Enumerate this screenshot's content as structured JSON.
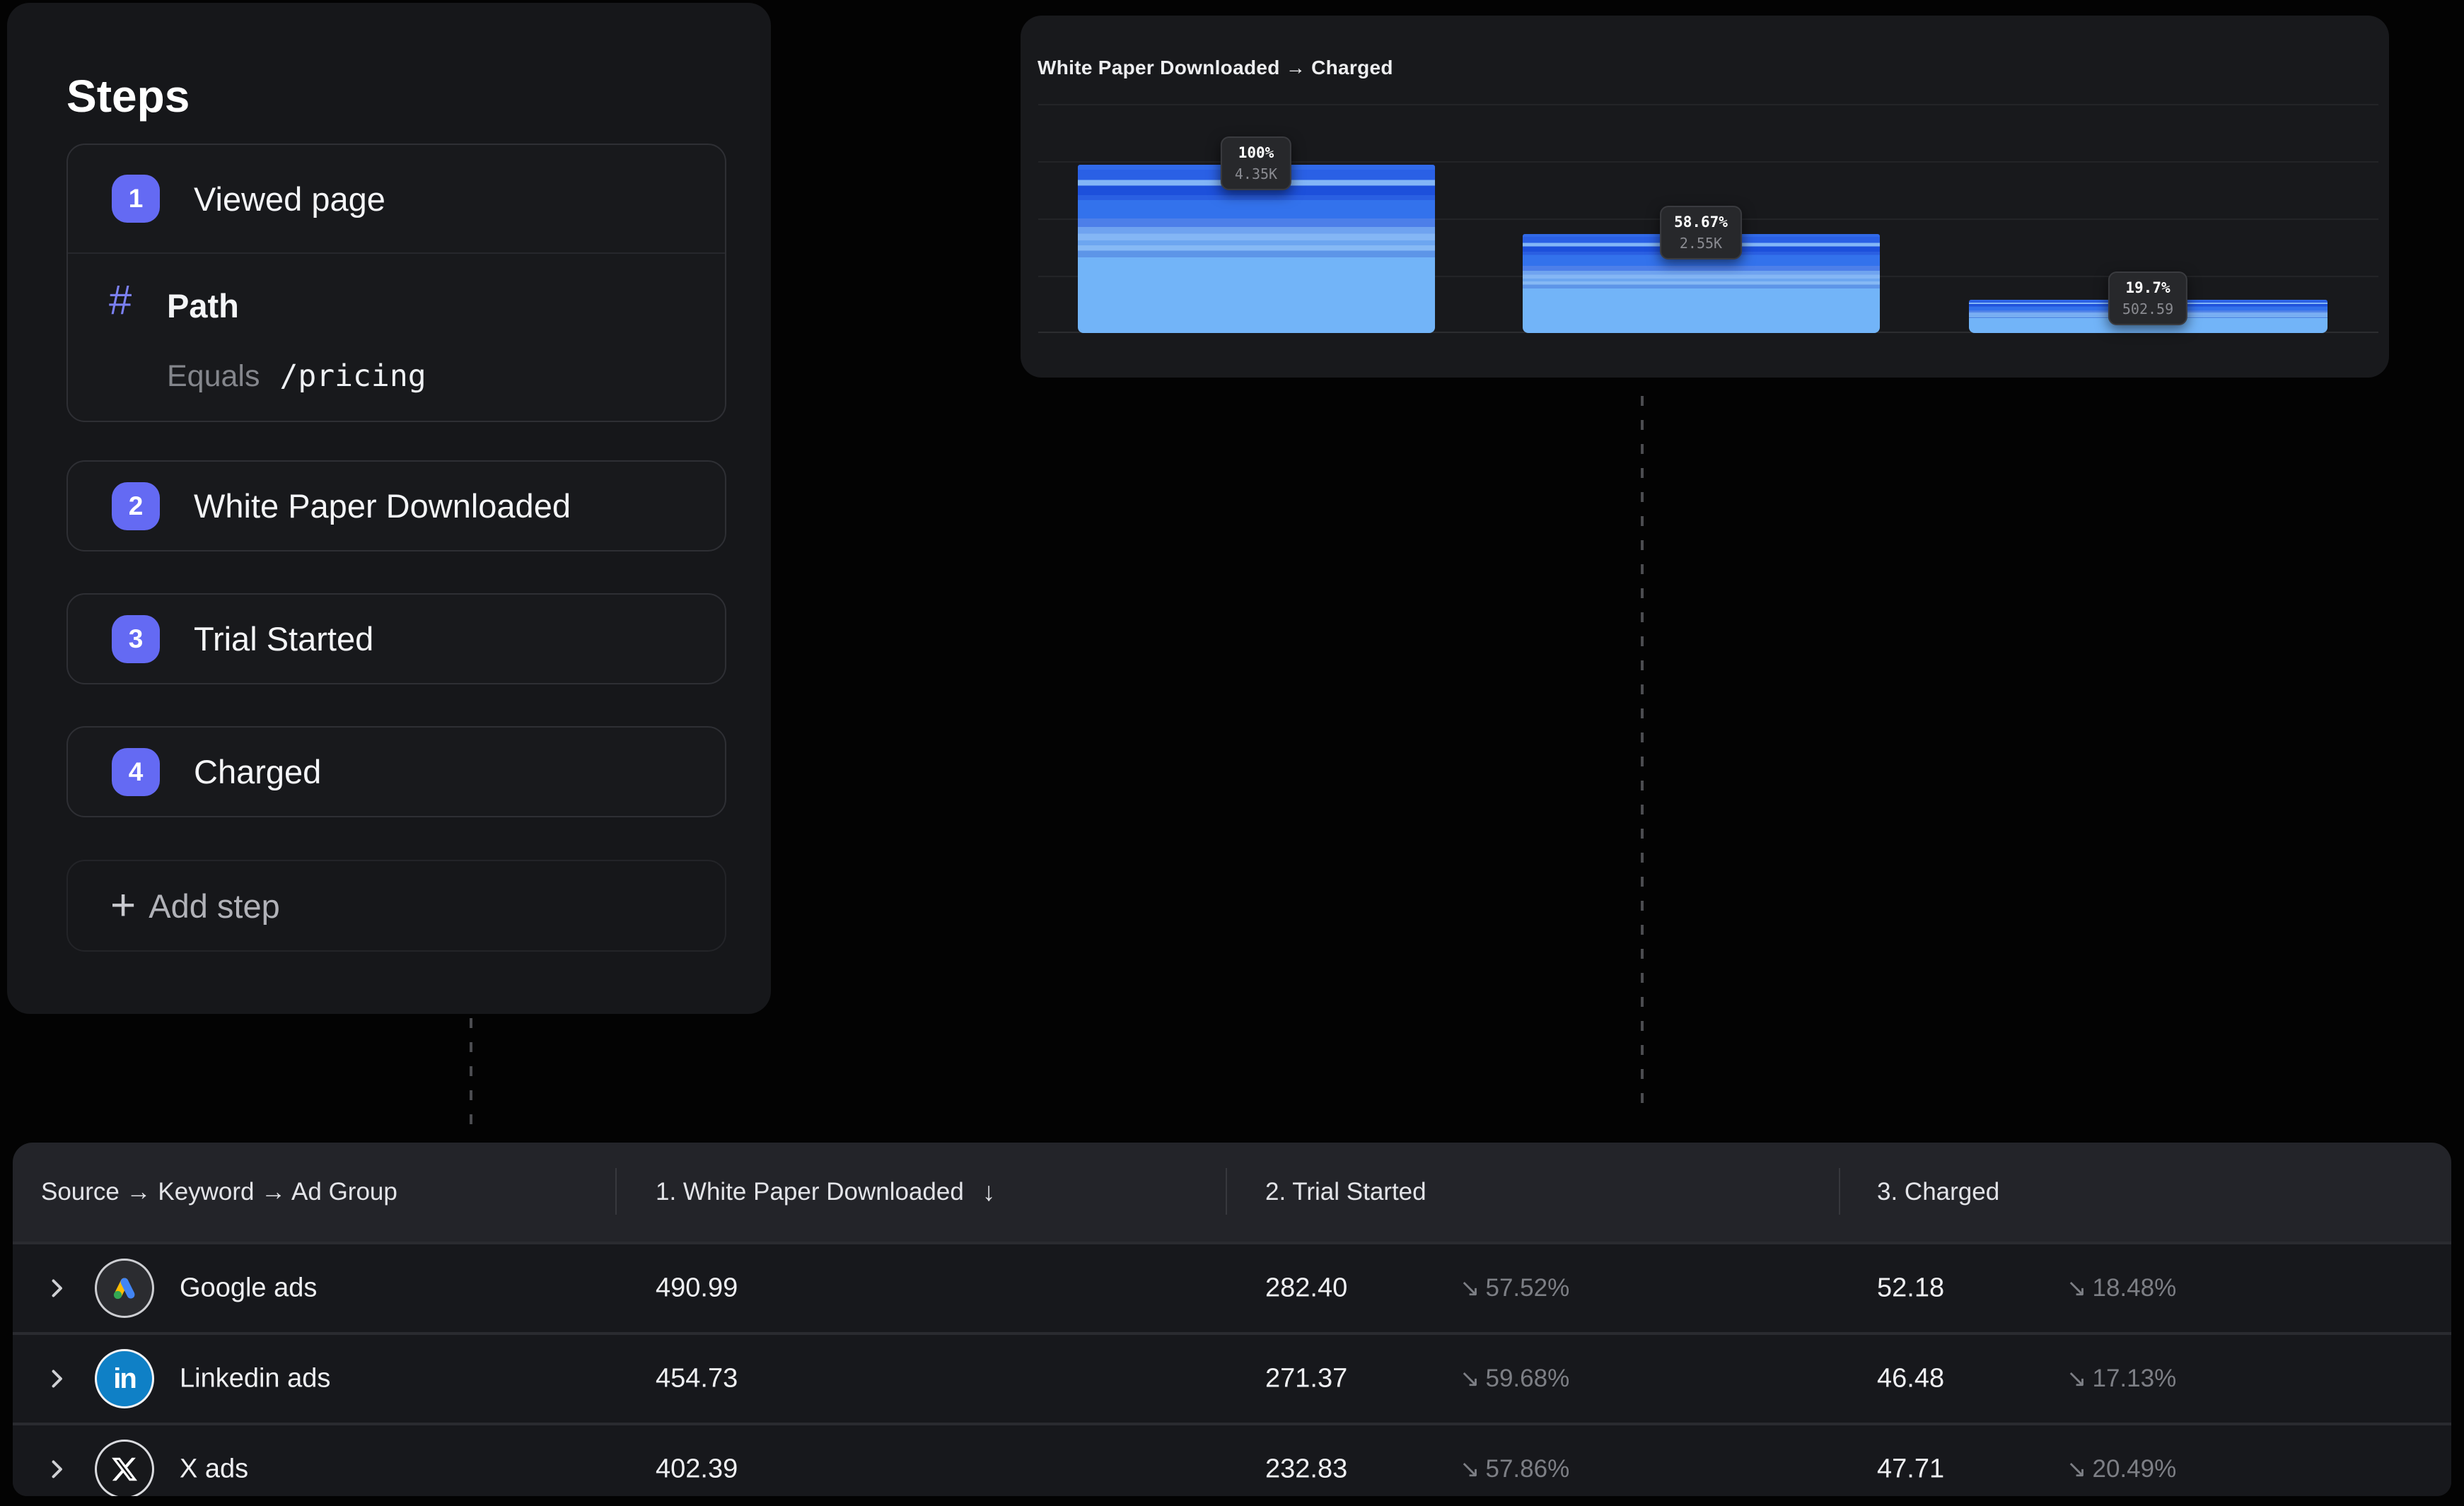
{
  "steps_panel": {
    "title": "Steps",
    "steps": [
      {
        "number": "1",
        "label": "Viewed page"
      },
      {
        "number": "2",
        "label": "White Paper Downloaded"
      },
      {
        "number": "3",
        "label": "Trial Started"
      },
      {
        "number": "4",
        "label": "Charged"
      }
    ],
    "step1_filter": {
      "icon": "hash",
      "property": "Path",
      "operator": "Equals",
      "value": "/pricing"
    },
    "add_step_label": "Add step",
    "plus_glyph": "+"
  },
  "chart_panel": {
    "title": "White Paper Downloaded → Charged"
  },
  "chart_data": {
    "type": "bar",
    "title": "White Paper Downloaded → Charged",
    "categories": [
      "White Paper Downloaded",
      "Trial Started",
      "Charged"
    ],
    "values": [
      100,
      58.67,
      19.7
    ],
    "bars": [
      {
        "value": 100,
        "pct_label": "100%",
        "count_label": "4.35K"
      },
      {
        "value": 58.67,
        "pct_label": "58.67%",
        "count_label": "2.55K"
      },
      {
        "value": 19.7,
        "pct_label": "19.7%",
        "count_label": "502.59"
      }
    ],
    "xlabel": "",
    "ylabel": "",
    "ylim": [
      0,
      135
    ],
    "grid": true,
    "legend": false,
    "bar_style": "stacked blue stripes (breakdown segments), dark tooltip pinned to each bar top"
  },
  "table": {
    "columns": [
      {
        "label": "Source → Keyword → Ad Group"
      },
      {
        "label": "1. White Paper Downloaded",
        "sorted": "desc"
      },
      {
        "label": "2. Trial Started"
      },
      {
        "label": "3. Charged"
      }
    ],
    "sort_arrow": "↓",
    "trend_arrow": "↘",
    "rows": [
      {
        "source": "Google ads",
        "icon": "google-ads-icon",
        "step1": "490.99",
        "step2": "282.40",
        "step2_pct": "57.52%",
        "step3": "52.18",
        "step3_pct": "18.48%"
      },
      {
        "source": "Linkedin ads",
        "icon": "linkedin-icon",
        "step1": "454.73",
        "step2": "271.37",
        "step2_pct": "59.68%",
        "step3": "46.48",
        "step3_pct": "17.13%"
      },
      {
        "source": "X ads",
        "icon": "x-icon",
        "step1": "402.39",
        "step2": "232.83",
        "step2_pct": "57.86%",
        "step3": "47.71",
        "step3_pct": "20.49%"
      }
    ],
    "linkedin_glyph": "in"
  },
  "colors": {
    "accent_indigo": "#646af3",
    "panel_bg": "#16171a",
    "table_bg": "#232429",
    "row_bg": "#17181c",
    "bar_light": "#72b4f8",
    "bar_dark": "#1d50db",
    "google_yellow": "#fbbc04",
    "google_blue": "#4285f4",
    "google_green": "#34a853",
    "linkedin_blue": "#0f80c6",
    "muted_text": "#7d7f85"
  }
}
